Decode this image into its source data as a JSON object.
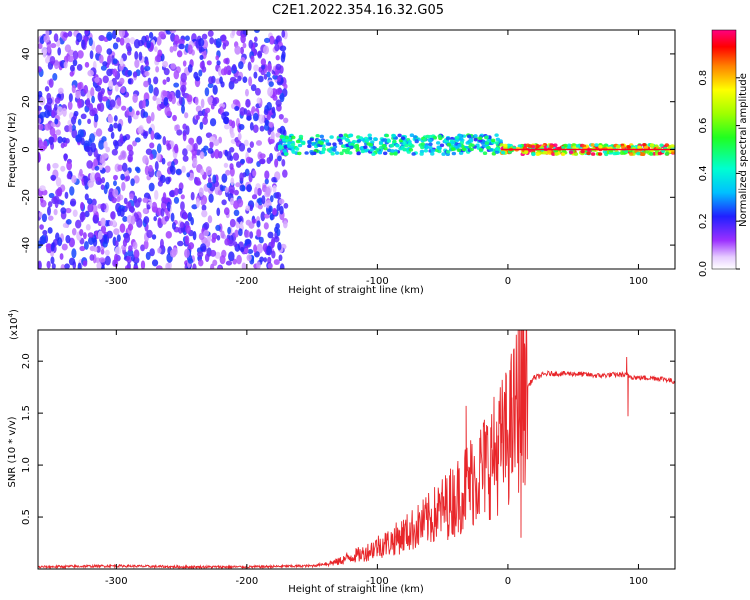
{
  "title": "C2E1.2022.354.16.32.G05",
  "colors": {
    "snr_line": "#e8262a",
    "background": "#ffffff",
    "axes": "#000000"
  },
  "chart_data": [
    {
      "type": "heatmap",
      "xlabel": "Height of straight line (km)",
      "ylabel": "Frequency (Hz)",
      "xlim": [
        -360,
        128
      ],
      "ylim": [
        -50,
        50
      ],
      "x_ticks": [
        -300,
        -200,
        -100,
        0,
        100
      ],
      "x_tick_labels": [
        "-300",
        "-200",
        "-100",
        "0",
        "100"
      ],
      "y_ticks": [
        -40,
        -20,
        0,
        20,
        40
      ],
      "y_tick_labels": [
        "-40",
        "-20",
        "0",
        "20",
        "40"
      ],
      "colorbar": {
        "label": "Normalized spectral amplitude",
        "range": [
          0.0,
          1.0
        ],
        "ticks": [
          0.0,
          0.2,
          0.4,
          0.6,
          0.8
        ],
        "tick_labels": [
          "0.0",
          "0.2",
          "0.4",
          "0.6",
          "0.8"
        ],
        "colormap": "rainbow (white-purple-blue-cyan-green-yellow-red-magenta)"
      },
      "features": [
        {
          "kind": "diffuse noise",
          "x_range": [
            -360,
            -170
          ],
          "y_range": [
            -50,
            50
          ],
          "amplitude": 0.2
        },
        {
          "kind": "band",
          "x_range": [
            -175,
            -5
          ],
          "center_hz": 2,
          "width_hz": 4,
          "amplitude": 0.5
        },
        {
          "kind": "band",
          "x_range": [
            -5,
            128
          ],
          "center_hz": 0,
          "width_hz": 2,
          "amplitude": 0.95
        }
      ]
    },
    {
      "type": "line",
      "xlabel": "Height of straight line (km)",
      "ylabel": "SNR (10 * v/v)",
      "y_multiplier": "(x10",
      "y_multiplier_exp": "4",
      "y_multiplier_close": ")",
      "xlim": [
        -360,
        128
      ],
      "ylim": [
        0,
        23000
      ],
      "x_ticks": [
        -300,
        -200,
        -100,
        0,
        100
      ],
      "x_tick_labels": [
        "-300",
        "-200",
        "-100",
        "0",
        "100"
      ],
      "y_ticks": [
        5000,
        10000,
        15000,
        20000
      ],
      "y_tick_labels": [
        "0.5",
        "1.0",
        "1.5",
        "2.0"
      ],
      "series": [
        {
          "x": [
            -360,
            -300,
            -250,
            -200,
            -150,
            -130,
            -120,
            -110,
            -100,
            -90,
            -80,
            -70,
            -60,
            -50,
            -40,
            -30,
            -20,
            -10,
            0,
            5,
            8,
            12,
            20,
            30,
            40,
            50,
            60,
            70,
            80,
            88,
            92,
            95,
            100,
            110,
            120,
            128
          ],
          "y": [
            200,
            300,
            200,
            200,
            300,
            700,
            1200,
            1500,
            2200,
            2600,
            3300,
            4000,
            4800,
            5800,
            6800,
            8300,
            9500,
            11000,
            12800,
            14500,
            16000,
            17000,
            18400,
            18800,
            18800,
            18800,
            18700,
            18600,
            18700,
            18700,
            18600,
            18500,
            18400,
            18400,
            18300,
            18000
          ],
          "spikes": [
            [
              -32,
              15700
            ],
            [
              -12,
              11500
            ],
            [
              -5,
              14000
            ],
            [
              3,
              16500
            ],
            [
              9,
              23000
            ],
            [
              10,
              3000
            ],
            [
              13,
              21200
            ],
            [
              91,
              20400
            ],
            [
              92,
              14700
            ]
          ]
        }
      ]
    }
  ]
}
